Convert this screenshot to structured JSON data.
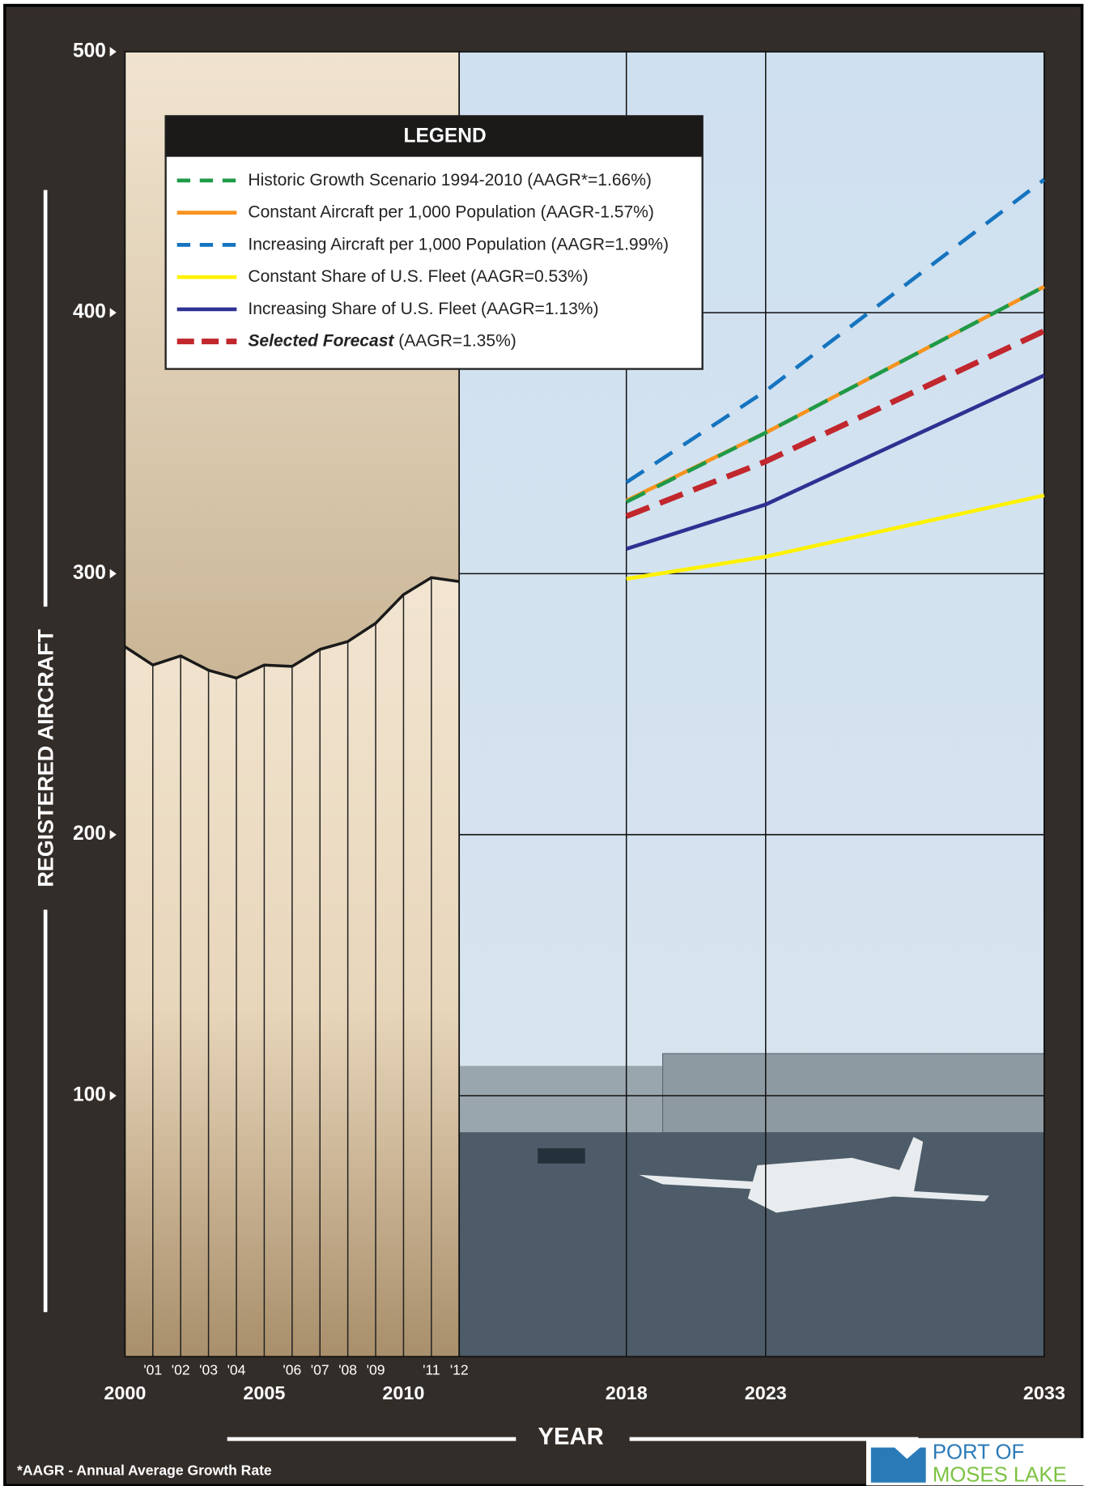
{
  "chart_data": {
    "type": "line",
    "y_label": "REGISTERED AIRCRAFT",
    "x_label": "YEAR",
    "legend_title": "LEGEND",
    "footnote": "*AAGR - Annual Average Growth Rate",
    "xlim": [
      2000,
      2033
    ],
    "ylim": [
      0,
      500
    ],
    "xticks": [
      2000,
      2005,
      2010,
      2018,
      2023,
      2033
    ],
    "xticks_minor": [
      {
        "value": 2001,
        "label": "'01"
      },
      {
        "value": 2002,
        "label": "'02"
      },
      {
        "value": 2003,
        "label": "'03"
      },
      {
        "value": 2004,
        "label": "'04"
      },
      {
        "value": 2006,
        "label": "'06"
      },
      {
        "value": 2007,
        "label": "'07"
      },
      {
        "value": 2008,
        "label": "'08"
      },
      {
        "value": 2009,
        "label": "'09"
      },
      {
        "value": 2011,
        "label": "'11"
      },
      {
        "value": 2012,
        "label": "'12"
      }
    ],
    "yticks": [
      100,
      200,
      300,
      400,
      500
    ],
    "grid": true,
    "series": [
      {
        "color": "#1a1a1a",
        "dash": false,
        "x": [
          2000,
          2001,
          2002,
          2003,
          2004,
          2005,
          2006,
          2007,
          2008,
          2009,
          2010,
          2011,
          2012
        ],
        "values": [
          272,
          265,
          268.5,
          263,
          260,
          265,
          264.5,
          271,
          274,
          281,
          292,
          298.5,
          297
        ]
      },
      {
        "name": "Historic Growth Scenario 1994-2010 (AAGR*=1.66%)",
        "color": "#1e9a48",
        "dash": true,
        "x": [
          2018,
          2023,
          2033
        ],
        "values": [
          327.5,
          354,
          410
        ]
      },
      {
        "name": "Constant Aircraft per 1,000 Population (AAGR-1.57%)",
        "color": "#f7931e",
        "dash": false,
        "x": [
          2018,
          2023,
          2033
        ],
        "values": [
          328,
          354,
          410
        ]
      },
      {
        "name": "Increasing Aircraft per 1,000 Population (AAGR=1.99%)",
        "color": "#1574c0",
        "dash": true,
        "x": [
          2018,
          2023,
          2033
        ],
        "values": [
          335,
          370,
          451
        ]
      },
      {
        "name": "Constant Share of U.S. Fleet (AAGR=0.53%)",
        "color": "#fff200",
        "dash": false,
        "x": [
          2018,
          2023,
          2033
        ],
        "values": [
          298,
          306.5,
          330
        ]
      },
      {
        "name": "Increasing Share of U.S. Fleet (AAGR=1.13%)",
        "color": "#2e3192",
        "dash": false,
        "x": [
          2018,
          2023,
          2033
        ],
        "values": [
          309.5,
          326.5,
          376
        ]
      },
      {
        "name": "Selected Forecast",
        "note": "(AAGR=1.35%)",
        "color": "#c1272d",
        "dash": true,
        "bold": true,
        "x": [
          2018,
          2023,
          2033
        ],
        "values": [
          322,
          343,
          393
        ]
      }
    ]
  },
  "logo": {
    "line1": "PORT OF",
    "line2": "MOSES LAKE"
  }
}
